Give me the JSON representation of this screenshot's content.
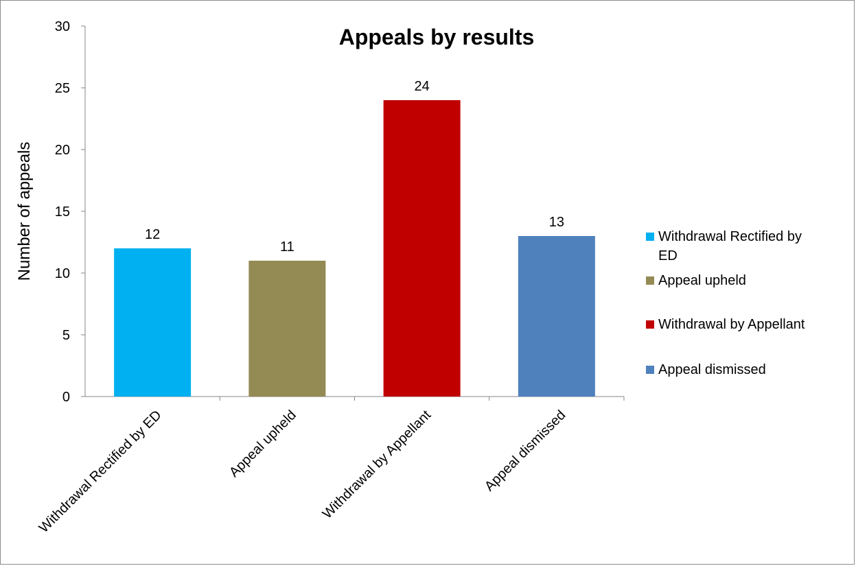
{
  "chart_data": {
    "type": "bar",
    "title": "Appeals by results",
    "ylabel": "Number of appeals",
    "xlabel": "",
    "categories": [
      "Withdrawal Rectified by ED",
      "Appeal upheld",
      "Withdrawal by Appellant",
      "Appeal dismissed"
    ],
    "values": [
      12,
      11,
      24,
      13
    ],
    "colors": [
      "#00b0f0",
      "#948a54",
      "#c00000",
      "#4f81bd"
    ],
    "ylim": [
      0,
      30
    ],
    "yticks": [
      0,
      5,
      10,
      15,
      20,
      25,
      30
    ],
    "grid": false,
    "legend_position": "right",
    "legend": [
      {
        "lines": [
          "Withdrawal Rectified by",
          "ED"
        ],
        "color": "#00b0f0"
      },
      {
        "lines": [
          "Appeal upheld"
        ],
        "color": "#948a54"
      },
      {
        "lines": [
          "Withdrawal by Appellant"
        ],
        "color": "#c00000"
      },
      {
        "lines": [
          "Appeal dismissed"
        ],
        "color": "#4f81bd"
      }
    ]
  }
}
